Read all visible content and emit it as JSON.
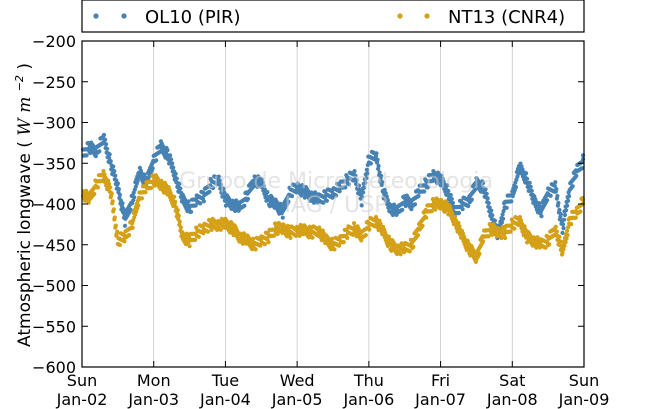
{
  "chart_data": {
    "type": "scatter",
    "ylabel": "Atmospheric longwave",
    "ylabel_unit_main": "W m",
    "ylabel_unit_exp": "−2",
    "ylim": [
      -600,
      -200
    ],
    "yticks": [
      -600,
      -550,
      -500,
      -450,
      -400,
      -350,
      -300,
      -250,
      -200
    ],
    "ytick_labels": [
      "−600",
      "−550",
      "−500",
      "−450",
      "−400",
      "−350",
      "−300",
      "−250",
      "−200"
    ],
    "xlim": [
      0,
      7
    ],
    "xtick_days": [
      "Sun",
      "Mon",
      "Tue",
      "Wed",
      "Thu",
      "Fri",
      "Sat",
      "Sun"
    ],
    "xtick_dates": [
      "Jan-02",
      "Jan-03",
      "Jan-04",
      "Jan-05",
      "Jan-06",
      "Jan-07",
      "Jan-08",
      "Jan-09"
    ],
    "grid": "vertical",
    "legend_position": "top",
    "watermark": [
      "Grupo de Micrometeorologia",
      "IAG / USP"
    ],
    "series": [
      {
        "name": "OL10 (PIR)",
        "color": "#4682b4",
        "x": [
          0.0,
          0.1,
          0.2,
          0.3,
          0.4,
          0.5,
          0.6,
          0.7,
          0.8,
          0.9,
          1.0,
          1.1,
          1.2,
          1.3,
          1.4,
          1.5,
          1.6,
          1.7,
          1.8,
          1.9,
          2.0,
          2.1,
          2.2,
          2.3,
          2.4,
          2.5,
          2.6,
          2.7,
          2.8,
          2.9,
          3.0,
          3.1,
          3.2,
          3.3,
          3.4,
          3.5,
          3.6,
          3.7,
          3.8,
          3.9,
          4.0,
          4.1,
          4.2,
          4.3,
          4.4,
          4.5,
          4.6,
          4.7,
          4.8,
          4.9,
          5.0,
          5.1,
          5.2,
          5.3,
          5.4,
          5.5,
          5.6,
          5.7,
          5.8,
          5.9,
          6.0,
          6.1,
          6.2,
          6.3,
          6.4,
          6.5,
          6.6,
          6.7,
          6.8,
          6.9,
          7.0
        ],
        "y": [
          -340,
          -330,
          -335,
          -320,
          -350,
          -380,
          -420,
          -395,
          -360,
          -375,
          -345,
          -330,
          -340,
          -365,
          -395,
          -405,
          -395,
          -390,
          -375,
          -370,
          -395,
          -400,
          -405,
          -390,
          -370,
          -375,
          -395,
          -400,
          -410,
          -385,
          -380,
          -385,
          -390,
          -395,
          -390,
          -385,
          -380,
          -370,
          -365,
          -395,
          -345,
          -340,
          -385,
          -405,
          -410,
          -395,
          -400,
          -385,
          -375,
          -365,
          -370,
          -385,
          -410,
          -400,
          -395,
          -375,
          -380,
          -410,
          -440,
          -400,
          -390,
          -355,
          -370,
          -395,
          -410,
          -385,
          -380,
          -430,
          -380,
          -360,
          -345
        ]
      },
      {
        "name": "NT13 (CNR4)",
        "color": "#d4a017",
        "x": [
          0.0,
          0.1,
          0.2,
          0.3,
          0.4,
          0.5,
          0.6,
          0.7,
          0.8,
          0.9,
          1.0,
          1.1,
          1.2,
          1.3,
          1.4,
          1.5,
          1.6,
          1.7,
          1.8,
          1.9,
          2.0,
          2.1,
          2.2,
          2.3,
          2.4,
          2.5,
          2.6,
          2.7,
          2.8,
          2.9,
          3.0,
          3.1,
          3.2,
          3.3,
          3.4,
          3.5,
          3.6,
          3.7,
          3.8,
          3.9,
          4.0,
          4.1,
          4.2,
          4.3,
          4.4,
          4.5,
          4.6,
          4.7,
          4.8,
          4.9,
          5.0,
          5.1,
          5.2,
          5.3,
          5.4,
          5.5,
          5.6,
          5.7,
          5.8,
          5.9,
          6.0,
          6.1,
          6.2,
          6.3,
          6.4,
          6.5,
          6.6,
          6.7,
          6.8,
          6.9,
          7.0
        ],
        "y": [
          -385,
          -395,
          -375,
          -365,
          -385,
          -445,
          -440,
          -425,
          -390,
          -380,
          -370,
          -375,
          -385,
          -400,
          -440,
          -445,
          -435,
          -430,
          -425,
          -425,
          -425,
          -430,
          -440,
          -445,
          -450,
          -445,
          -440,
          -430,
          -430,
          -435,
          -432,
          -433,
          -435,
          -432,
          -445,
          -450,
          -445,
          -435,
          -430,
          -440,
          -425,
          -420,
          -435,
          -450,
          -455,
          -455,
          -450,
          -430,
          -410,
          -400,
          -400,
          -405,
          -420,
          -440,
          -455,
          -465,
          -440,
          -430,
          -435,
          -435,
          -425,
          -420,
          -440,
          -445,
          -450,
          -445,
          -430,
          -460,
          -420,
          -410,
          -395
        ]
      }
    ]
  }
}
